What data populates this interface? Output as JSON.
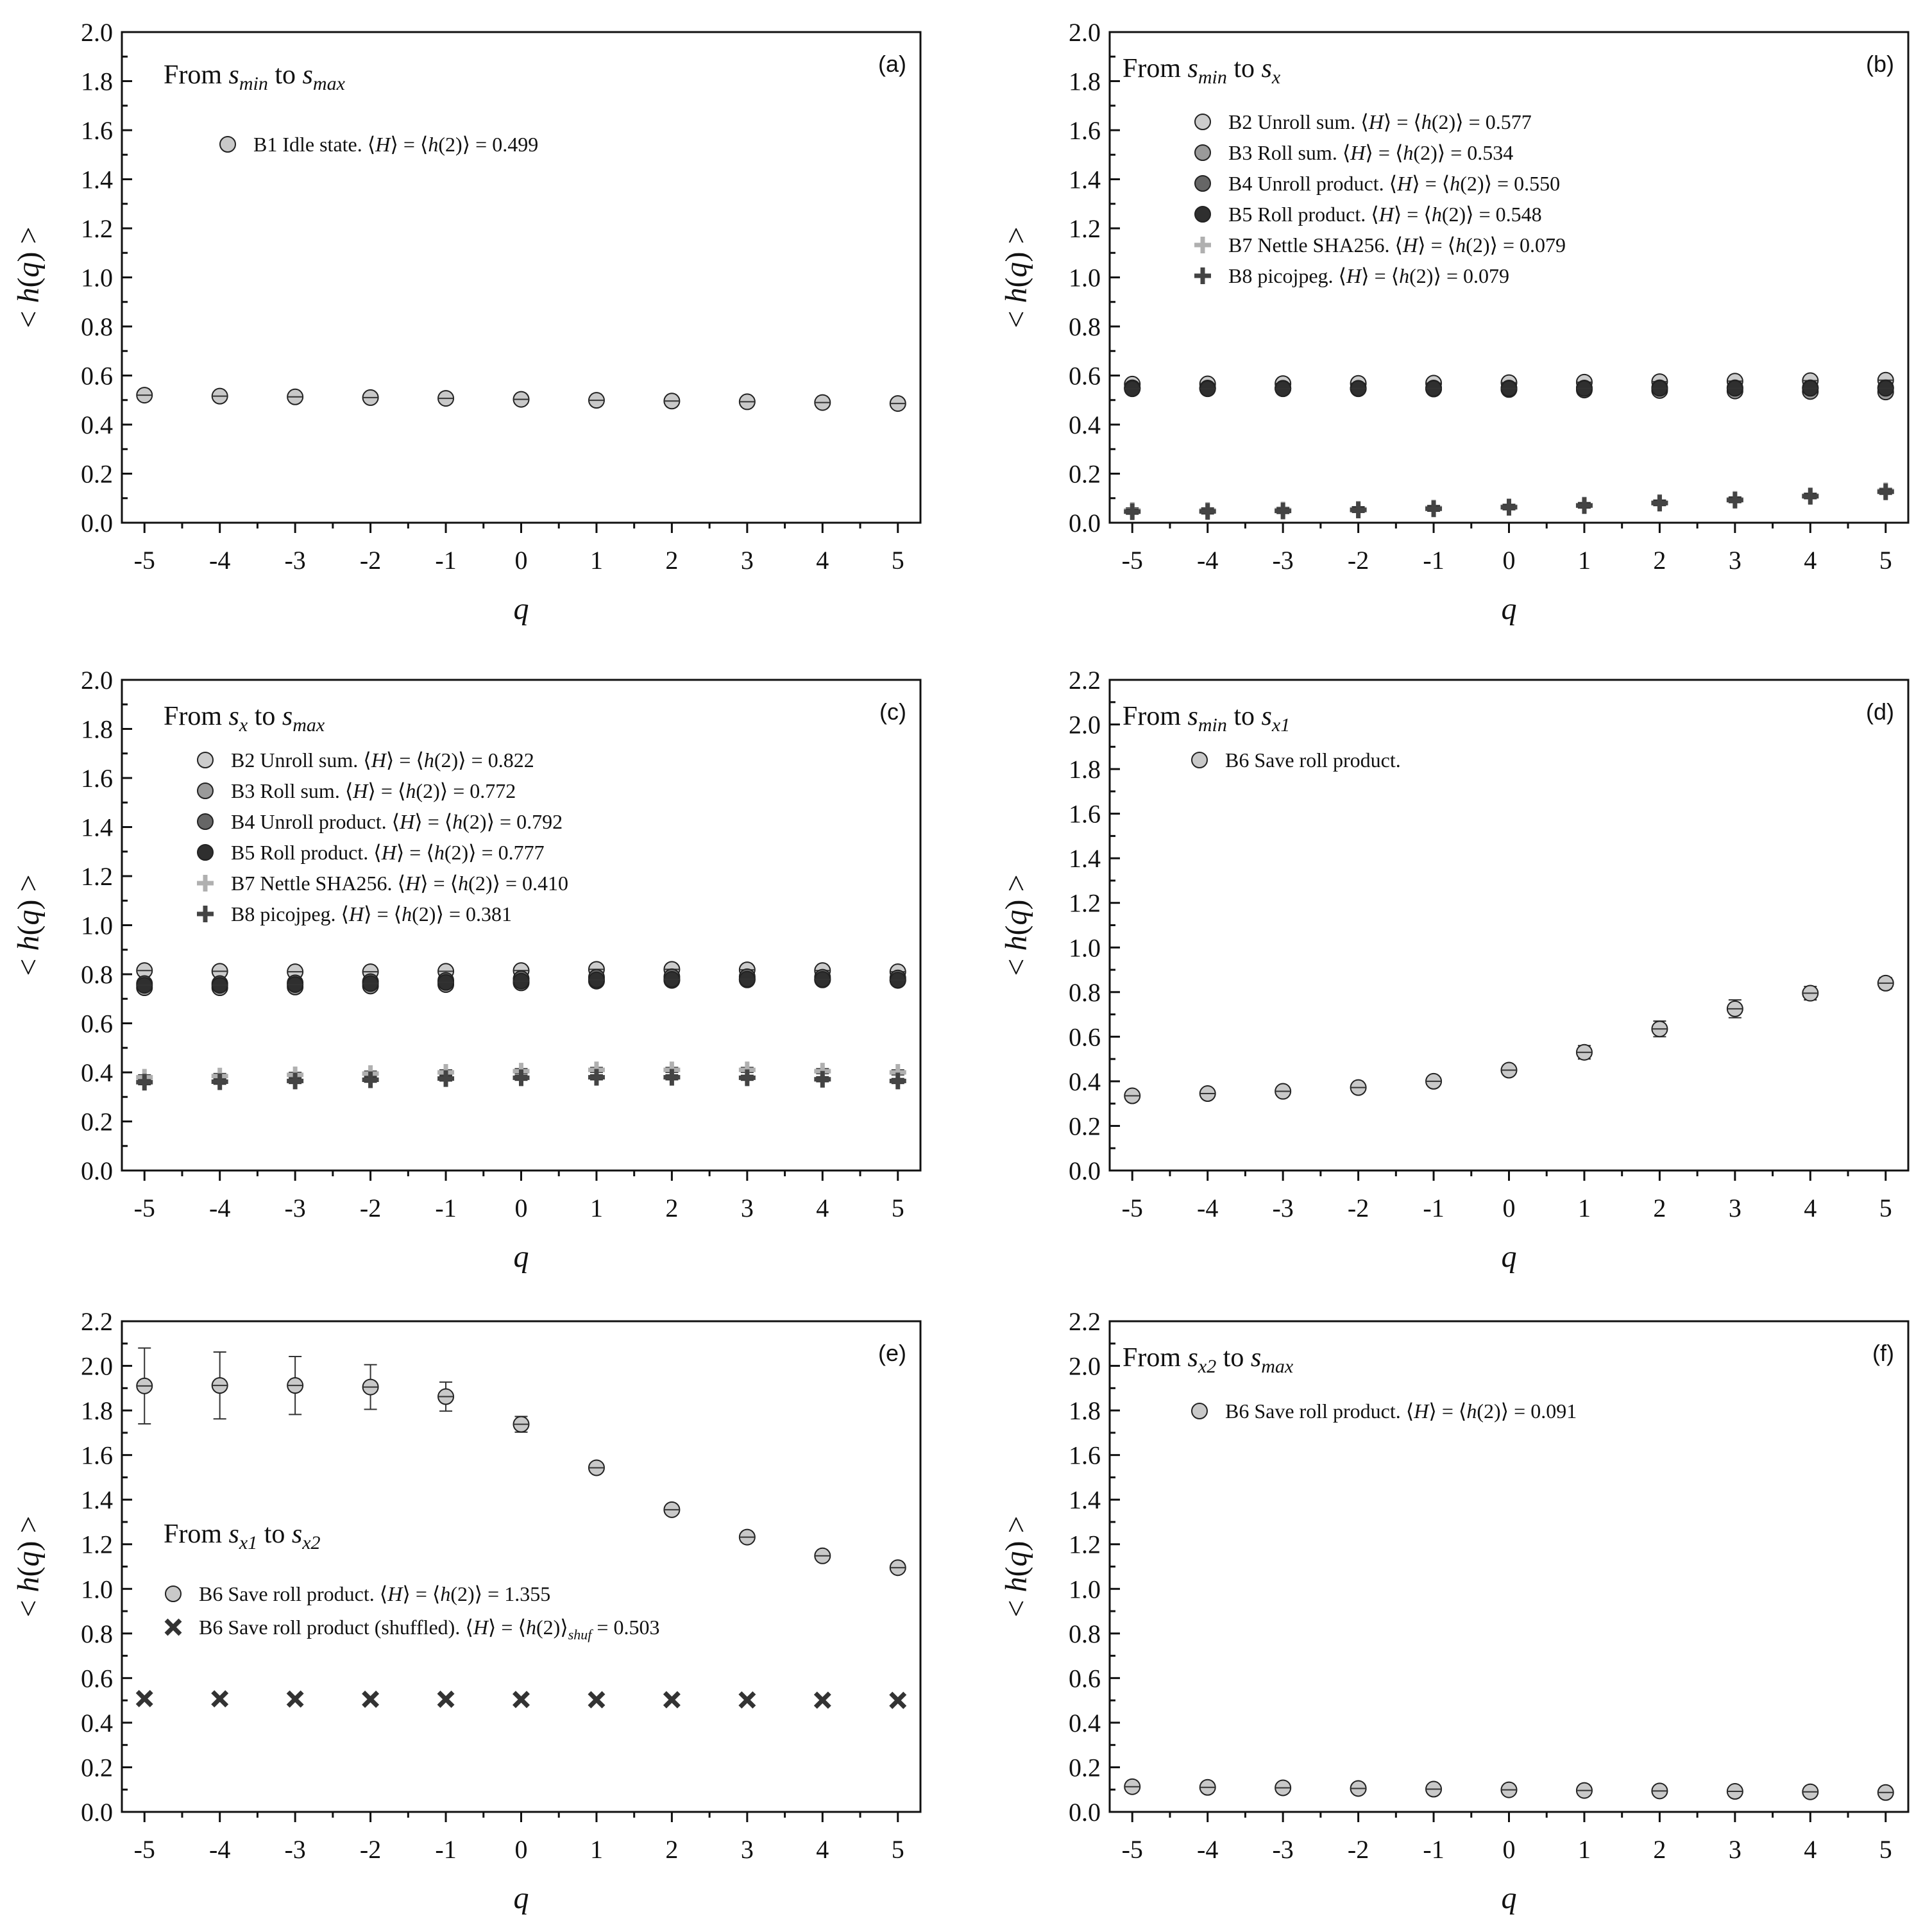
{
  "colors": {
    "B1": "#c9c9c9",
    "B2": "#cccccc",
    "B3": "#9a9a9a",
    "B4": "#666666",
    "B5": "#2f2f2f",
    "B6": "#c9c9c9",
    "B7": "#b0b0b0",
    "B8": "#444444",
    "shuffled": "#333333",
    "axis": "#111111"
  },
  "chart_data": [
    {
      "id": "a",
      "label": "(a)",
      "type": "scatter",
      "title": {
        "pre": "From ",
        "s1": "s",
        "sub1": "min",
        "mid": " to ",
        "s2": "s",
        "sub2": "max"
      },
      "xlabel": "q",
      "ylabel": "< h(q) >",
      "x": [
        -5,
        -4,
        -3,
        -2,
        -1,
        0,
        1,
        2,
        3,
        4,
        5
      ],
      "xlim": [
        -5.3,
        5.3
      ],
      "ylim": [
        0,
        2.0
      ],
      "yticks": [
        "0.0",
        "0.2",
        "0.4",
        "0.6",
        "0.8",
        "1.0",
        "1.2",
        "1.4",
        "1.6",
        "1.8",
        "2.0"
      ],
      "xticks": [
        "-5",
        "-4",
        "-3",
        "-2",
        "-1",
        "0",
        "1",
        "2",
        "3",
        "4",
        "5"
      ],
      "series": [
        {
          "name": "B1 Idle state.",
          "hval": "0.499",
          "marker": "circle",
          "color_key": "B1",
          "values": [
            0.52,
            0.516,
            0.513,
            0.51,
            0.507,
            0.503,
            0.499,
            0.496,
            0.493,
            0.49,
            0.486
          ],
          "err": [
            0.01,
            0.01,
            0.01,
            0.01,
            0.01,
            0.01,
            0.01,
            0.01,
            0.01,
            0.01,
            0.01
          ]
        }
      ]
    },
    {
      "id": "b",
      "label": "(b)",
      "type": "scatter",
      "title": {
        "pre": "From ",
        "s1": "s",
        "sub1": "min",
        "mid": " to ",
        "s2": "s",
        "sub2": "x"
      },
      "xlabel": "q",
      "ylabel": "< h(q) >",
      "x": [
        -5,
        -4,
        -3,
        -2,
        -1,
        0,
        1,
        2,
        3,
        4,
        5
      ],
      "xlim": [
        -5.3,
        5.3
      ],
      "ylim": [
        0,
        2.0
      ],
      "yticks": [
        "0.0",
        "0.2",
        "0.4",
        "0.6",
        "0.8",
        "1.0",
        "1.2",
        "1.4",
        "1.6",
        "1.8",
        "2.0"
      ],
      "xticks": [
        "-5",
        "-4",
        "-3",
        "-2",
        "-1",
        "0",
        "1",
        "2",
        "3",
        "4",
        "5"
      ],
      "series": [
        {
          "name": "B2 Unroll sum.",
          "hval": "0.577",
          "marker": "circle",
          "color_key": "B2",
          "values": [
            0.565,
            0.566,
            0.567,
            0.568,
            0.569,
            0.571,
            0.573,
            0.575,
            0.577,
            0.579,
            0.581
          ],
          "err": [
            0.01,
            0.01,
            0.01,
            0.01,
            0.01,
            0.01,
            0.01,
            0.01,
            0.01,
            0.01,
            0.01
          ]
        },
        {
          "name": "B3 Roll sum.",
          "hval": "0.534",
          "marker": "circle",
          "color_key": "B3",
          "values": [
            0.55,
            0.549,
            0.548,
            0.546,
            0.545,
            0.543,
            0.541,
            0.539,
            0.537,
            0.535,
            0.533
          ],
          "err": [
            0.01,
            0.01,
            0.01,
            0.01,
            0.01,
            0.01,
            0.01,
            0.01,
            0.01,
            0.01,
            0.01
          ]
        },
        {
          "name": "B4 Unroll product.",
          "hval": " 0.550",
          "marker": "circle",
          "color_key": "B4",
          "values": [
            0.548,
            0.548,
            0.548,
            0.548,
            0.549,
            0.549,
            0.549,
            0.55,
            0.55,
            0.55,
            0.55
          ],
          "err": [
            0.01,
            0.01,
            0.01,
            0.01,
            0.01,
            0.01,
            0.01,
            0.01,
            0.01,
            0.01,
            0.01
          ]
        },
        {
          "name": "B5 Roll product.",
          "hval": "0.548",
          "marker": "circle",
          "color_key": "B5",
          "values": [
            0.546,
            0.546,
            0.546,
            0.547,
            0.547,
            0.547,
            0.547,
            0.548,
            0.548,
            0.548,
            0.548
          ],
          "err": [
            0.01,
            0.01,
            0.01,
            0.01,
            0.01,
            0.01,
            0.01,
            0.01,
            0.01,
            0.01,
            0.01
          ]
        },
        {
          "name": "B7 Nettle SHA256.",
          "hval": "0.079",
          "marker": "plus",
          "color_key": "B7",
          "values": [
            0.05,
            0.05,
            0.052,
            0.055,
            0.06,
            0.065,
            0.072,
            0.082,
            0.095,
            0.11,
            0.13
          ],
          "err": [
            0.01,
            0.01,
            0.01,
            0.01,
            0.01,
            0.01,
            0.01,
            0.01,
            0.01,
            0.01,
            0.01
          ]
        },
        {
          "name": "B8 picojpeg.",
          "hval": "0.079",
          "marker": "plus",
          "color_key": "B8",
          "values": [
            0.045,
            0.046,
            0.048,
            0.052,
            0.057,
            0.063,
            0.07,
            0.08,
            0.092,
            0.108,
            0.126
          ],
          "err": [
            0.01,
            0.01,
            0.01,
            0.01,
            0.01,
            0.01,
            0.01,
            0.01,
            0.01,
            0.01,
            0.01
          ]
        }
      ]
    },
    {
      "id": "c",
      "label": "(c)",
      "type": "scatter",
      "title": {
        "pre": "From ",
        "s1": "s",
        "sub1": "x",
        "mid": " to ",
        "s2": "s",
        "sub2": "max"
      },
      "xlabel": "q",
      "ylabel": "< h(q) >",
      "x": [
        -5,
        -4,
        -3,
        -2,
        -1,
        0,
        1,
        2,
        3,
        4,
        5
      ],
      "xlim": [
        -5.3,
        5.3
      ],
      "ylim": [
        0,
        2.0
      ],
      "yticks": [
        "0.0",
        "0.2",
        "0.4",
        "0.6",
        "0.8",
        "1.0",
        "1.2",
        "1.4",
        "1.6",
        "1.8",
        "2.0"
      ],
      "xticks": [
        "-5",
        "-4",
        "-3",
        "-2",
        "-1",
        "0",
        "1",
        "2",
        "3",
        "4",
        "5"
      ],
      "series": [
        {
          "name": "B2 Unroll sum.",
          "hval": "0.822",
          "marker": "circle",
          "color_key": "B2",
          "values": [
            0.815,
            0.812,
            0.81,
            0.81,
            0.812,
            0.815,
            0.82,
            0.82,
            0.818,
            0.815,
            0.81
          ],
          "err": [
            0.01,
            0.01,
            0.01,
            0.01,
            0.01,
            0.01,
            0.01,
            0.01,
            0.01,
            0.01,
            0.01
          ]
        },
        {
          "name": "B3 Roll sum.",
          "hval": "0.772",
          "marker": "circle",
          "color_key": "B3",
          "values": [
            0.745,
            0.745,
            0.748,
            0.752,
            0.758,
            0.765,
            0.772,
            0.775,
            0.777,
            0.777,
            0.775
          ],
          "err": [
            0.01,
            0.01,
            0.01,
            0.01,
            0.01,
            0.01,
            0.01,
            0.01,
            0.01,
            0.01,
            0.01
          ]
        },
        {
          "name": "B4 Unroll product.",
          "hval": "0.792",
          "marker": "circle",
          "color_key": "B4",
          "values": [
            0.762,
            0.762,
            0.765,
            0.77,
            0.775,
            0.782,
            0.788,
            0.79,
            0.79,
            0.788,
            0.785
          ],
          "err": [
            0.01,
            0.01,
            0.01,
            0.01,
            0.01,
            0.01,
            0.01,
            0.01,
            0.01,
            0.01,
            0.01
          ]
        },
        {
          "name": "B5 Roll product.",
          "hval": "0.777",
          "marker": "circle",
          "color_key": "B5",
          "values": [
            0.755,
            0.755,
            0.758,
            0.762,
            0.767,
            0.772,
            0.777,
            0.779,
            0.78,
            0.779,
            0.776
          ],
          "err": [
            0.01,
            0.01,
            0.01,
            0.01,
            0.01,
            0.01,
            0.01,
            0.01,
            0.01,
            0.01,
            0.01
          ]
        },
        {
          "name": "B7 Nettle SHA256.",
          "hval": "0.410",
          "marker": "plus",
          "color_key": "B7",
          "values": [
            0.38,
            0.385,
            0.39,
            0.395,
            0.4,
            0.405,
            0.41,
            0.41,
            0.41,
            0.405,
            0.4
          ],
          "err": [
            0.01,
            0.01,
            0.01,
            0.01,
            0.01,
            0.01,
            0.01,
            0.01,
            0.01,
            0.01,
            0.01
          ]
        },
        {
          "name": "B8 picojpeg.",
          "hval": "0.381",
          "marker": "plus",
          "color_key": "B8",
          "values": [
            0.36,
            0.362,
            0.365,
            0.37,
            0.375,
            0.378,
            0.38,
            0.38,
            0.378,
            0.372,
            0.365
          ],
          "err": [
            0.01,
            0.01,
            0.01,
            0.01,
            0.01,
            0.01,
            0.01,
            0.01,
            0.01,
            0.01,
            0.01
          ]
        }
      ]
    },
    {
      "id": "d",
      "label": "(d)",
      "type": "scatter",
      "title": {
        "pre": "From ",
        "s1": "s",
        "sub1": "min",
        "mid": " to ",
        "s2": "s",
        "sub2": "x1"
      },
      "xlabel": "q",
      "ylabel": "< h(q) >",
      "x": [
        -5,
        -4,
        -3,
        -2,
        -1,
        0,
        1,
        2,
        3,
        4,
        5
      ],
      "xlim": [
        -5.3,
        5.3
      ],
      "ylim": [
        0,
        2.2
      ],
      "yticks": [
        "0.0",
        "0.2",
        "0.4",
        "0.6",
        "0.8",
        "1.0",
        "1.2",
        "1.4",
        "1.6",
        "1.8",
        "2.0",
        "2.2"
      ],
      "xticks": [
        "-5",
        "-4",
        "-3",
        "-2",
        "-1",
        "0",
        "1",
        "2",
        "3",
        "4",
        "5"
      ],
      "series": [
        {
          "name": "B6 Save roll product.",
          "hval": "",
          "marker": "circle",
          "color_key": "B6",
          "values": [
            0.335,
            0.345,
            0.355,
            0.372,
            0.4,
            0.45,
            0.53,
            0.635,
            0.725,
            0.795,
            0.84
          ],
          "err": [
            0.012,
            0.012,
            0.014,
            0.016,
            0.018,
            0.022,
            0.03,
            0.035,
            0.04,
            0.03,
            0.025
          ]
        }
      ]
    },
    {
      "id": "e",
      "label": "(e)",
      "type": "scatter",
      "title": {
        "pre": "From ",
        "s1": "s",
        "sub1": "x1",
        "mid": " to ",
        "s2": "s",
        "sub2": "x2"
      },
      "xlabel": "q",
      "ylabel": "< h(q) >",
      "x": [
        -5,
        -4,
        -3,
        -2,
        -1,
        0,
        1,
        2,
        3,
        4,
        5
      ],
      "xlim": [
        -5.3,
        5.3
      ],
      "ylim": [
        0,
        2.2
      ],
      "yticks": [
        "0.0",
        "0.2",
        "0.4",
        "0.6",
        "0.8",
        "1.0",
        "1.2",
        "1.4",
        "1.6",
        "1.8",
        "2.0",
        "2.2"
      ],
      "xticks": [
        "-5",
        "-4",
        "-3",
        "-2",
        "-1",
        "0",
        "1",
        "2",
        "3",
        "4",
        "5"
      ],
      "series": [
        {
          "name": "B6 Save roll product.",
          "hval": "1.355",
          "marker": "circle",
          "color_key": "B6",
          "values": [
            1.91,
            1.912,
            1.912,
            1.905,
            1.862,
            1.738,
            1.543,
            1.355,
            1.232,
            1.148,
            1.095
          ],
          "err": [
            0.17,
            0.15,
            0.13,
            0.1,
            0.065,
            0.035,
            0.02,
            0.015,
            0.015,
            0.015,
            0.015
          ]
        },
        {
          "name": "B6 Save roll product (shuffled).",
          "hval": "0.503",
          "hsub": "shuf",
          "marker": "x",
          "color_key": "shuffled",
          "values": [
            0.508,
            0.507,
            0.506,
            0.505,
            0.505,
            0.504,
            0.503,
            0.503,
            0.502,
            0.501,
            0.5
          ],
          "err": [
            0,
            0,
            0,
            0,
            0,
            0,
            0,
            0,
            0,
            0,
            0
          ]
        }
      ]
    },
    {
      "id": "f",
      "label": "(f)",
      "type": "scatter",
      "title": {
        "pre": "From ",
        "s1": "s",
        "sub1": "x2",
        "mid": " to ",
        "s2": "s",
        "sub2": "max"
      },
      "xlabel": "q",
      "ylabel": "< h(q) >",
      "x": [
        -5,
        -4,
        -3,
        -2,
        -1,
        0,
        1,
        2,
        3,
        4,
        5
      ],
      "xlim": [
        -5.3,
        5.3
      ],
      "ylim": [
        0,
        2.2
      ],
      "yticks": [
        "0.0",
        "0.2",
        "0.4",
        "0.6",
        "0.8",
        "1.0",
        "1.2",
        "1.4",
        "1.6",
        "1.8",
        "2.0",
        "2.2"
      ],
      "xticks": [
        "-5",
        "-4",
        "-3",
        "-2",
        "-1",
        "0",
        "1",
        "2",
        "3",
        "4",
        "5"
      ],
      "series": [
        {
          "name": "B6 Save roll product.",
          "hval": " 0.091",
          "marker": "circle",
          "color_key": "B6",
          "values": [
            0.113,
            0.11,
            0.108,
            0.105,
            0.102,
            0.099,
            0.096,
            0.094,
            0.092,
            0.09,
            0.087
          ],
          "err": [
            0.01,
            0.01,
            0.01,
            0.01,
            0.01,
            0.01,
            0.01,
            0.01,
            0.01,
            0.01,
            0.01
          ]
        }
      ]
    }
  ]
}
